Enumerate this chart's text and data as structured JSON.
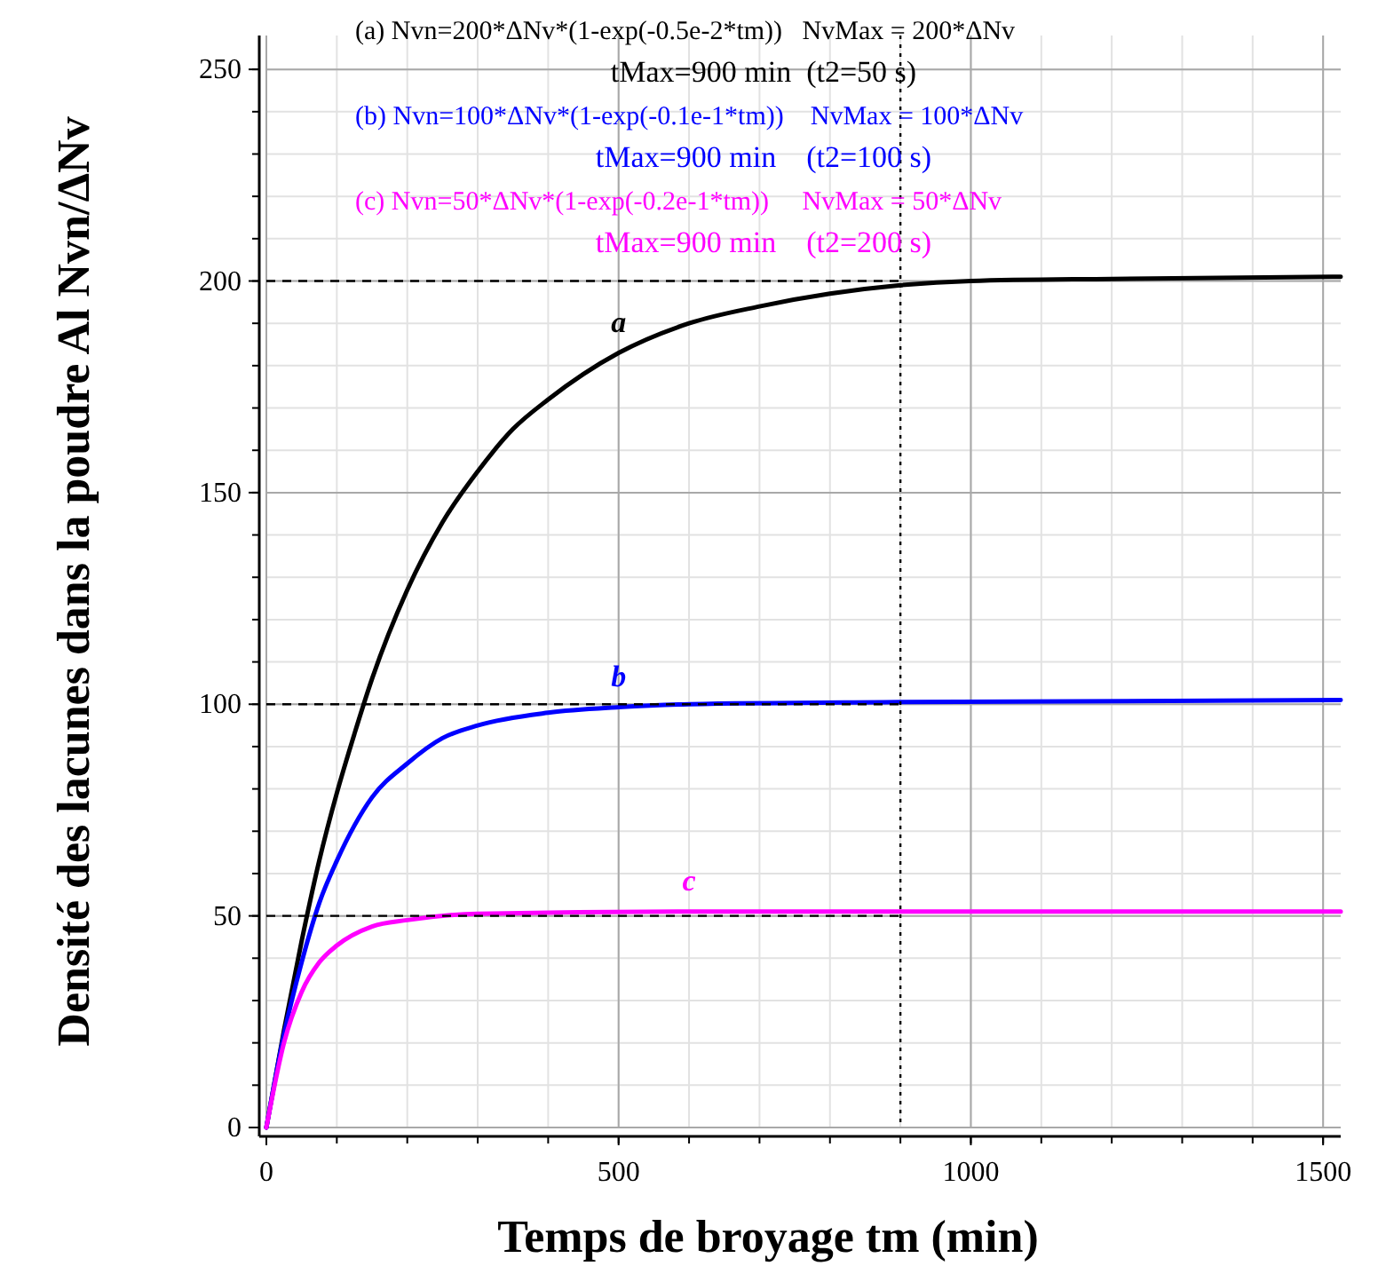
{
  "chart_data": {
    "type": "line",
    "xlabel": "Temps de broyage tm (min)",
    "ylabel": "Densité des lacunes dans la poudre Al Nvn/ΔNv",
    "xlim": [
      0,
      1525
    ],
    "ylim": [
      0,
      258
    ],
    "xticks": [
      0,
      500,
      1000,
      1500
    ],
    "yticks": [
      0,
      50,
      100,
      150,
      200,
      250
    ],
    "grid": true,
    "line_style": "solid",
    "marker": "none",
    "series": [
      {
        "name": "a",
        "color": "#000000",
        "x": [
          0,
          25,
          50,
          75,
          100,
          125,
          150,
          200,
          250,
          300,
          350,
          400,
          450,
          500,
          600,
          700,
          800,
          900,
          1000,
          1200,
          1525
        ],
        "values": [
          0,
          23,
          44,
          63,
          79,
          93,
          106,
          127,
          143,
          155,
          165,
          172,
          178,
          183,
          190,
          194,
          197,
          199,
          200,
          200.5,
          201
        ]
      },
      {
        "name": "b",
        "color": "#0000ff",
        "x": [
          0,
          25,
          50,
          75,
          100,
          150,
          200,
          250,
          300,
          400,
          500,
          600,
          900,
          1525
        ],
        "values": [
          0,
          22,
          39,
          53,
          63,
          78,
          86,
          92,
          95,
          98,
          99.3,
          100,
          100.5,
          101
        ]
      },
      {
        "name": "c",
        "color": "#ff00ff",
        "x": [
          0,
          25,
          50,
          75,
          100,
          150,
          200,
          300,
          600,
          1525
        ],
        "values": [
          0,
          20,
          32,
          39,
          43,
          47.5,
          49,
          50.5,
          51,
          51
        ]
      }
    ],
    "ref_lines": [
      {
        "axis": "y",
        "value": 200,
        "line_style": "dashed",
        "color": "#000000"
      },
      {
        "axis": "y",
        "value": 100,
        "line_style": "dashed",
        "color": "#000000"
      },
      {
        "axis": "y",
        "value": 50,
        "line_style": "dashed",
        "color": "#000000"
      },
      {
        "axis": "x",
        "value": 900,
        "line_style": "dotted",
        "color": "#000000"
      }
    ],
    "annotations": [
      "(a) Nvn=200*ΔNv*(1-exp(-0.5e-2*tm))   NvMax = 200*ΔNv",
      "tMax=900 min  (t2=50 s)",
      "(b) Nvn=100*ΔNv*(1-exp(-0.1e-1*tm))    NvMax = 100*ΔNv",
      "tMax=900 min    (t2=100 s)",
      "(c) Nvn=50*ΔNv*(1-exp(-0.2e-1*tm))     NvMax = 50*ΔNv",
      "tMax=900 min    (t2=200 s)"
    ]
  }
}
